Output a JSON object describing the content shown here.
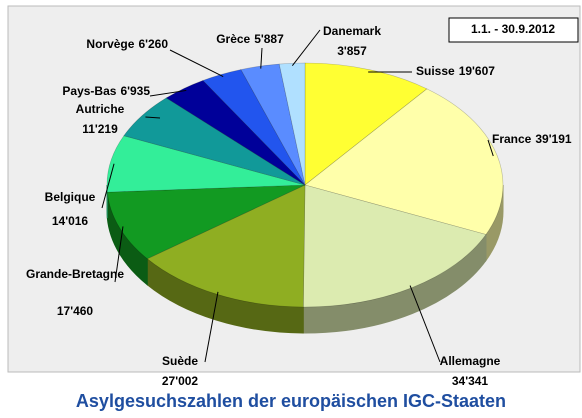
{
  "chart_data": {
    "type": "pie",
    "title": "Asylgesuchszahlen der europäischen IGC-Staaten",
    "annotation": "1.1. - 30.9.2012",
    "categories": [
      "Suisse",
      "France",
      "Allemagne",
      "Suède",
      "Grande-Bretagne",
      "Belgique",
      "Autriche",
      "Pays-Bas",
      "Norvège",
      "Grèce",
      "Danemark"
    ],
    "values": [
      19607,
      39191,
      34341,
      27002,
      17460,
      14016,
      11219,
      6935,
      6260,
      5887,
      3857
    ],
    "value_labels": [
      "19'607",
      "39'191",
      "34'341",
      "27'002",
      "17'460",
      "14'016",
      "11'219",
      "6'935",
      "6'260",
      "5'887",
      "3'857"
    ],
    "colors": [
      "#ffff33",
      "#ffffaa",
      "#dcebb0",
      "#8fae22",
      "#129a22",
      "#33ee99",
      "#119999",
      "#000099",
      "#2255ee",
      "#5a8cff",
      "#b0e0ff"
    ]
  }
}
